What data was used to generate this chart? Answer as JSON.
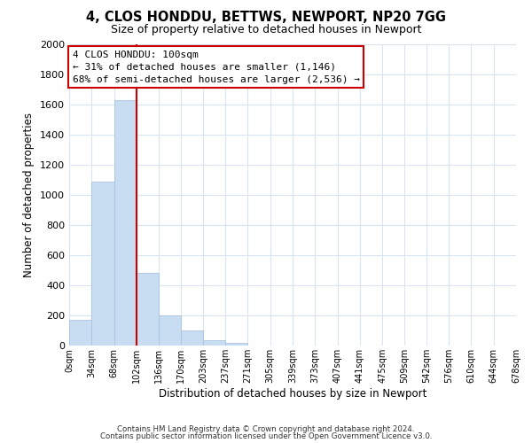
{
  "title": "4, CLOS HONDDU, BETTWS, NEWPORT, NP20 7GG",
  "subtitle": "Size of property relative to detached houses in Newport",
  "xlabel": "Distribution of detached houses by size in Newport",
  "ylabel": "Number of detached properties",
  "bar_color": "#c9ddf2",
  "bar_edge_color": "#a8c4e0",
  "bins": [
    0,
    34,
    68,
    102,
    136,
    170,
    203,
    237,
    271,
    305,
    339,
    373,
    407,
    441,
    475,
    509,
    542,
    576,
    610,
    644,
    678
  ],
  "bin_labels": [
    "0sqm",
    "34sqm",
    "68sqm",
    "102sqm",
    "136sqm",
    "170sqm",
    "203sqm",
    "237sqm",
    "271sqm",
    "305sqm",
    "339sqm",
    "373sqm",
    "407sqm",
    "441sqm",
    "475sqm",
    "509sqm",
    "542sqm",
    "576sqm",
    "610sqm",
    "644sqm",
    "678sqm"
  ],
  "counts": [
    170,
    1090,
    1630,
    480,
    200,
    100,
    38,
    18,
    0,
    0,
    0,
    0,
    0,
    0,
    0,
    0,
    0,
    0,
    0,
    0
  ],
  "ylim": [
    0,
    2000
  ],
  "yticks": [
    0,
    200,
    400,
    600,
    800,
    1000,
    1200,
    1400,
    1600,
    1800,
    2000
  ],
  "property_line_x": 102,
  "property_line_color": "#cc0000",
  "annotation_title": "4 CLOS HONDDU: 100sqm",
  "annotation_line1": "← 31% of detached houses are smaller (1,146)",
  "annotation_line2": "68% of semi-detached houses are larger (2,536) →",
  "annotation_box_color": "#ffffff",
  "annotation_box_edge": "#cc0000",
  "footer1": "Contains HM Land Registry data © Crown copyright and database right 2024.",
  "footer2": "Contains public sector information licensed under the Open Government Licence v3.0.",
  "background_color": "#ffffff",
  "grid_color": "#d8e4f0"
}
